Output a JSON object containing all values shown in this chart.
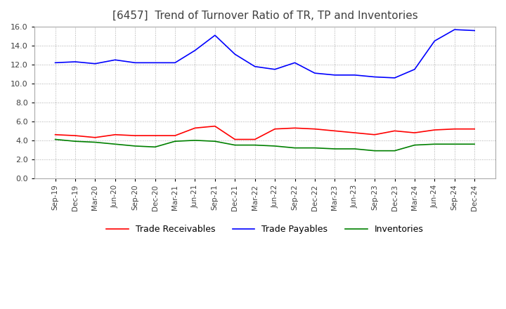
{
  "title": "[6457]  Trend of Turnover Ratio of TR, TP and Inventories",
  "xlabels": [
    "Sep-19",
    "Dec-19",
    "Mar-20",
    "Jun-20",
    "Sep-20",
    "Dec-20",
    "Mar-21",
    "Jun-21",
    "Sep-21",
    "Dec-21",
    "Mar-22",
    "Jun-22",
    "Sep-22",
    "Dec-22",
    "Mar-23",
    "Jun-23",
    "Sep-23",
    "Dec-23",
    "Mar-24",
    "Jun-24",
    "Sep-24",
    "Dec-24"
  ],
  "trade_receivables": [
    4.6,
    4.5,
    4.3,
    4.6,
    4.5,
    4.5,
    4.5,
    5.3,
    5.5,
    4.1,
    4.1,
    5.2,
    5.3,
    5.2,
    5.0,
    4.8,
    4.6,
    5.0,
    4.8,
    5.1,
    5.2,
    5.2
  ],
  "trade_payables": [
    12.2,
    12.3,
    12.1,
    12.5,
    12.2,
    12.2,
    12.2,
    13.5,
    15.1,
    13.1,
    11.8,
    11.5,
    12.2,
    11.1,
    10.9,
    10.9,
    10.7,
    10.6,
    11.5,
    14.5,
    15.7,
    15.6
  ],
  "inventories": [
    4.1,
    3.9,
    3.8,
    3.6,
    3.4,
    3.3,
    3.9,
    4.0,
    3.9,
    3.5,
    3.5,
    3.4,
    3.2,
    3.2,
    3.1,
    3.1,
    2.9,
    2.9,
    3.5,
    3.6,
    3.6,
    3.6
  ],
  "tr_color": "#ff0000",
  "tp_color": "#0000ff",
  "inv_color": "#008000",
  "ylim": [
    0,
    16.0
  ],
  "yticks": [
    0.0,
    2.0,
    4.0,
    6.0,
    8.0,
    10.0,
    12.0,
    14.0,
    16.0
  ],
  "background_color": "#ffffff",
  "grid_color": "#aaaaaa",
  "title_fontsize": 11,
  "legend_labels": [
    "Trade Receivables",
    "Trade Payables",
    "Inventories"
  ]
}
